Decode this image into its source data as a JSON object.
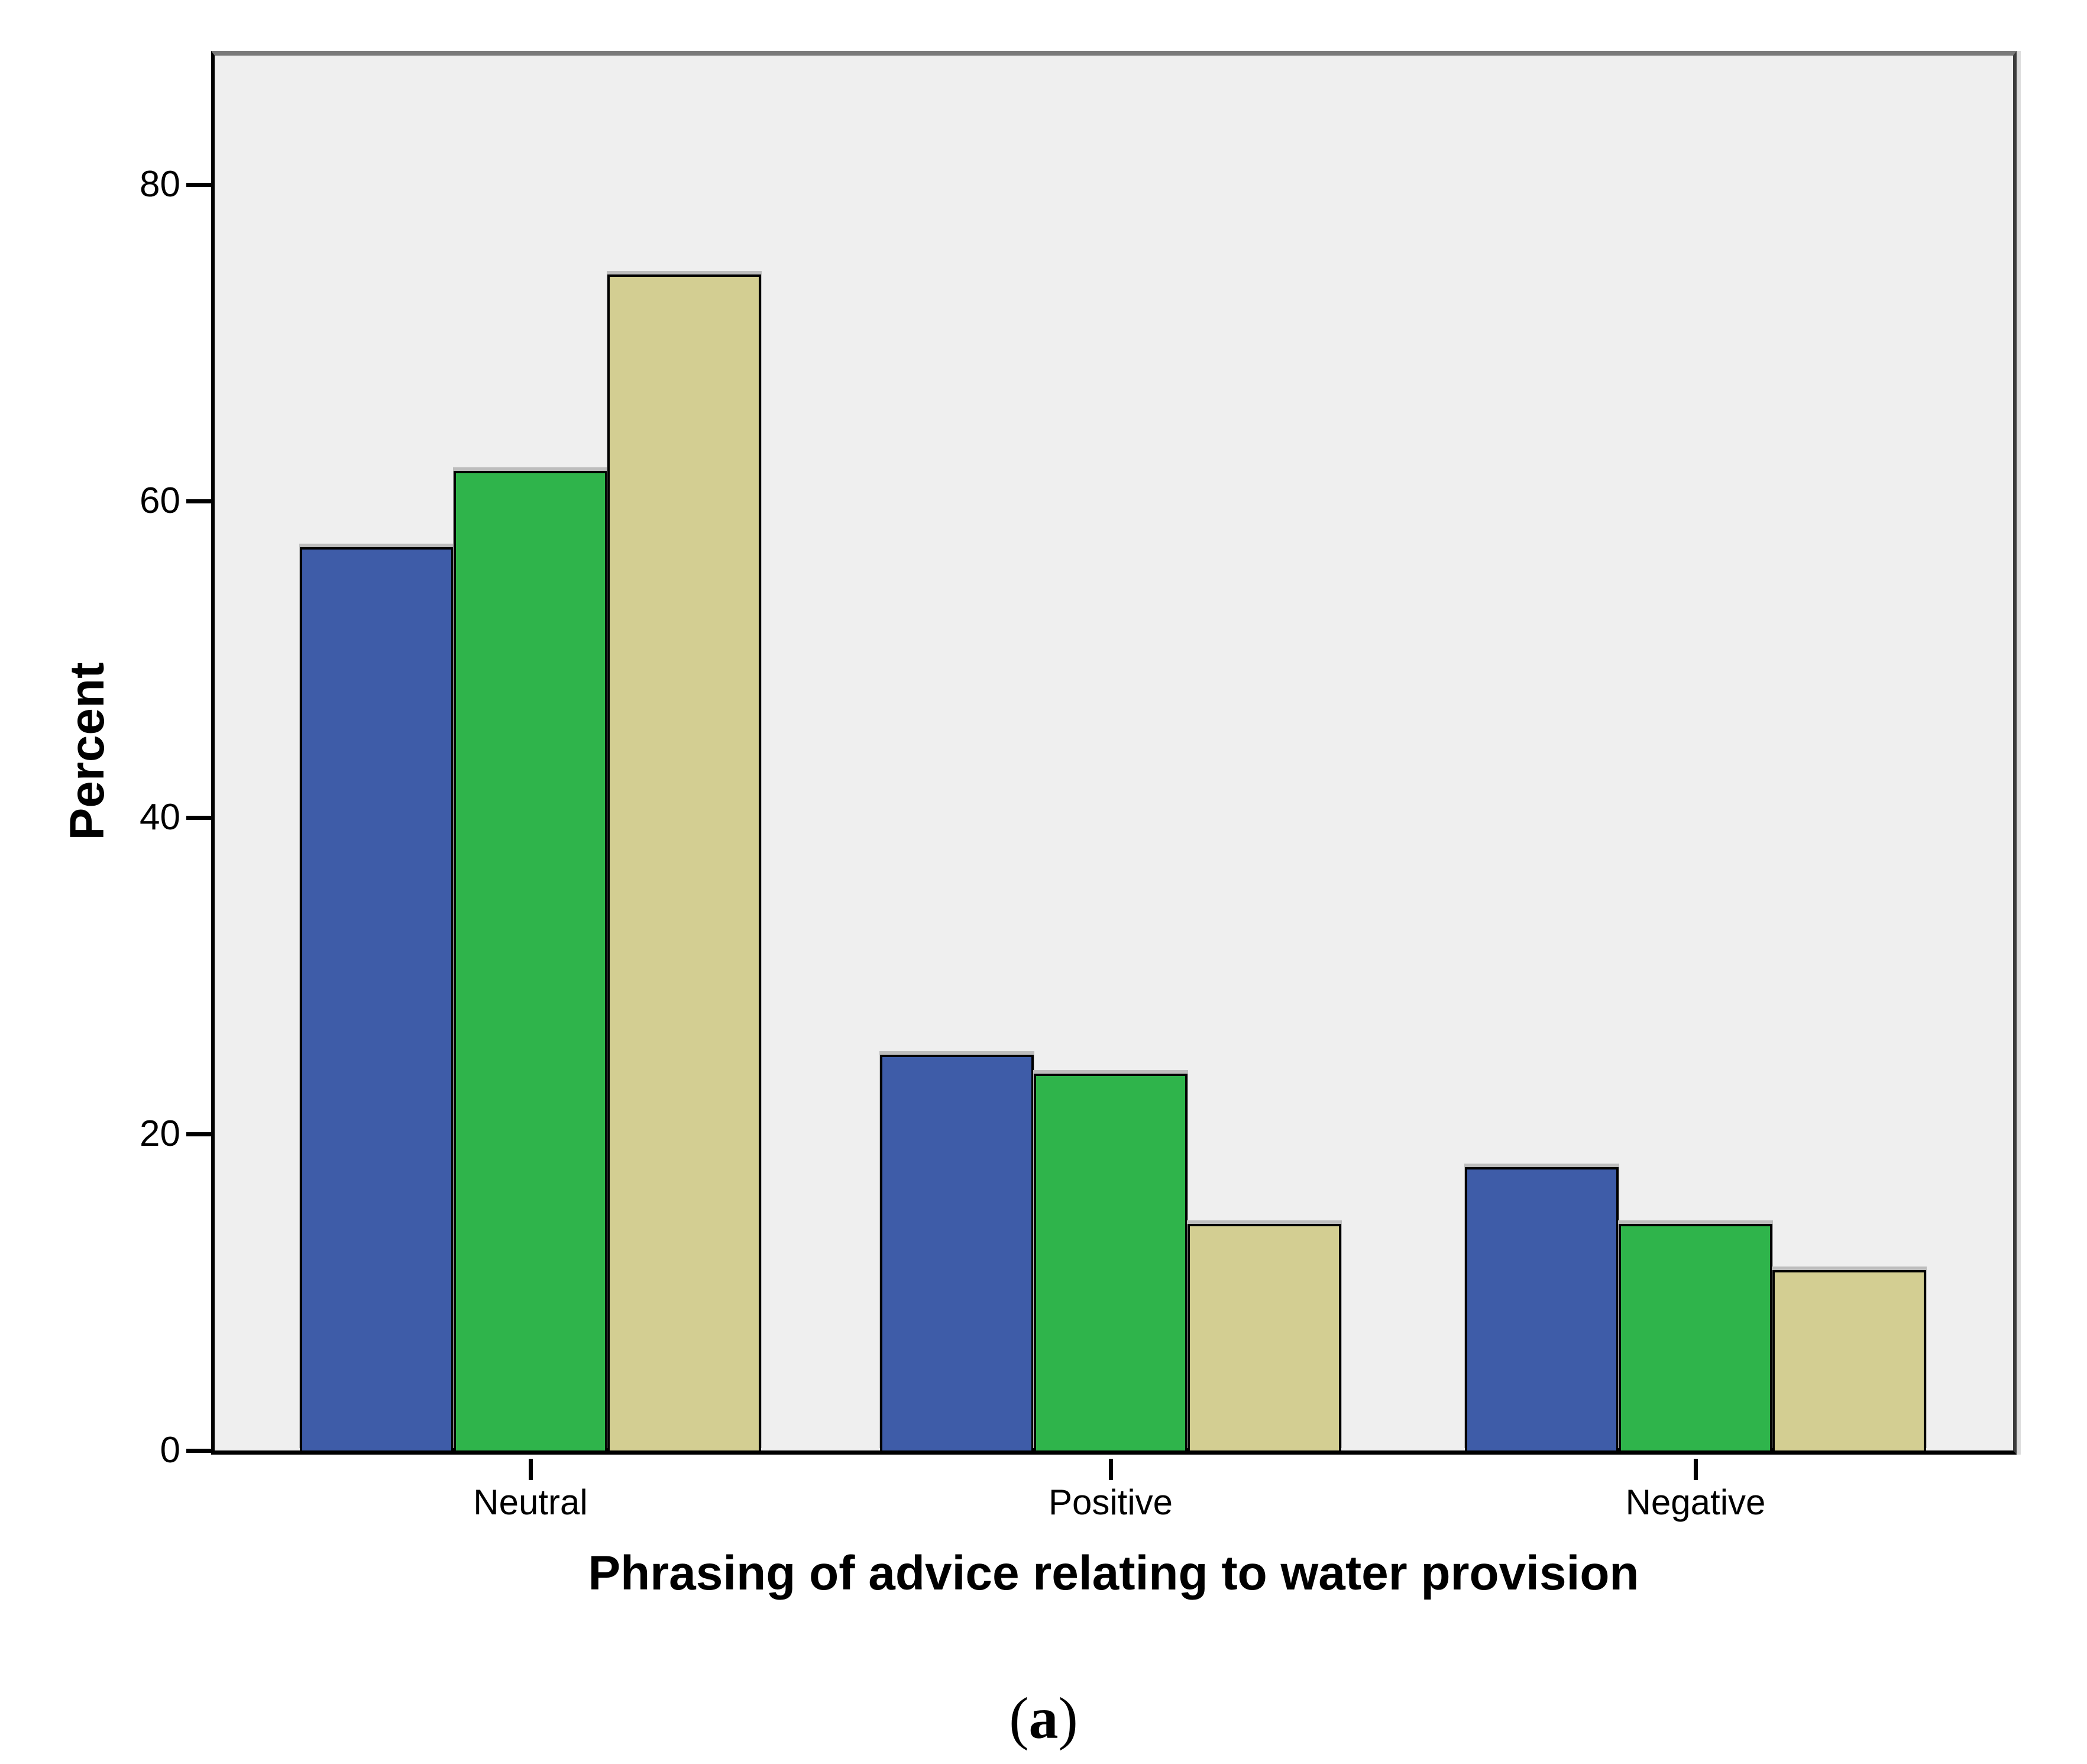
{
  "figure": {
    "caption": {
      "open": "(",
      "label": "a",
      "close": ")"
    }
  },
  "chart_data": {
    "type": "bar",
    "title": "",
    "xlabel": "Phrasing of advice relating to water provision",
    "ylabel": "Percent",
    "categories": [
      "Neutral",
      "Positive",
      "Negative"
    ],
    "series": [
      {
        "name": "blue",
        "color": "#3e5ca8",
        "values": [
          57.1,
          25.0,
          17.9
        ]
      },
      {
        "name": "green",
        "color": "#2fb44b",
        "values": [
          61.9,
          23.8,
          14.3
        ]
      },
      {
        "name": "tan",
        "color": "#d3ce92",
        "values": [
          74.3,
          14.3,
          11.4
        ]
      }
    ],
    "ylim": [
      0,
      88.4
    ],
    "yticks": [
      0,
      20,
      40,
      60,
      80
    ],
    "legend": "none",
    "grid": false,
    "plot_background": "#efefef",
    "bar_border_color": "#000000",
    "frame_top_color": "#7a7a7a"
  }
}
